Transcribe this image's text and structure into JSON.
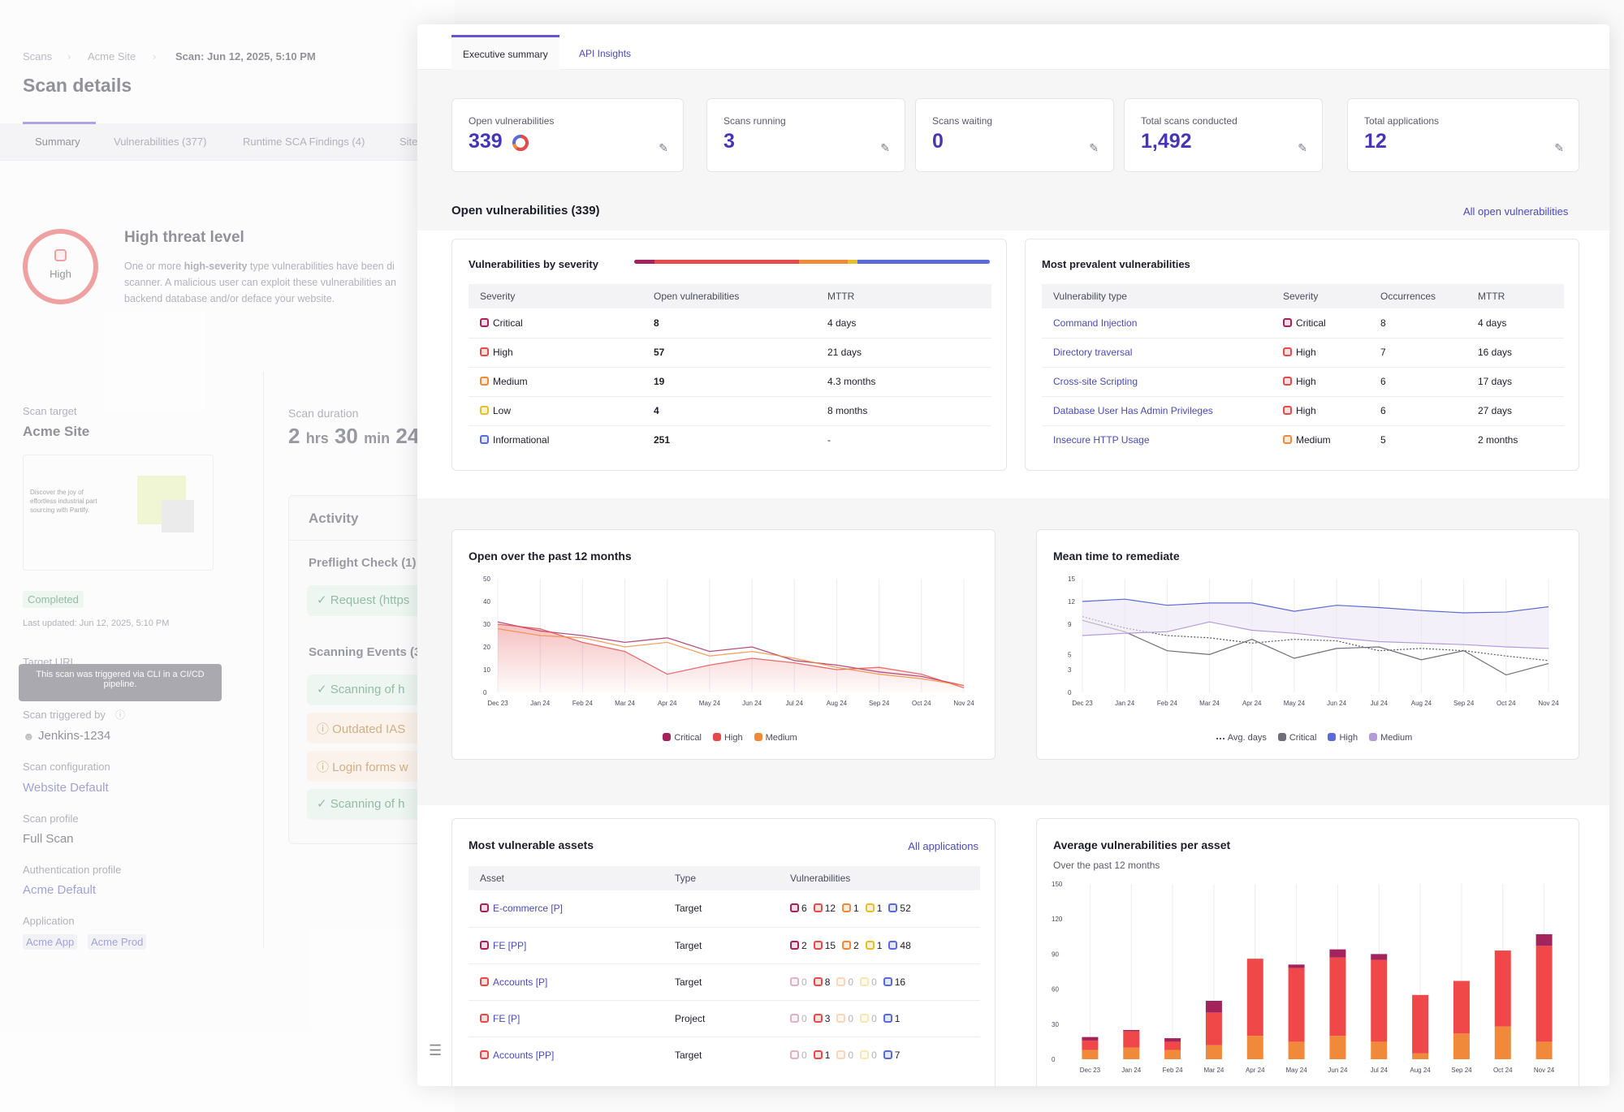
{
  "background": {
    "breadcrumb": [
      "Scans",
      "Acme Site",
      "Scan: Jun 12, 2025, 5:10 PM"
    ],
    "title": "Scan details",
    "tabs": [
      "Summary",
      "Vulnerabilities (377)",
      "Runtime SCA Findings (4)",
      "Site"
    ],
    "threat_level": "High threat level",
    "threat_ring_label": "High",
    "threat_desc_1a": "One or more ",
    "threat_desc_1b": "high-severity",
    "threat_desc_1c": " type vulnerabilities have been di",
    "threat_desc_2": "scanner. A malicious user can exploit these vulnerabilities an",
    "threat_desc_3": "backend database and/or deface your website.",
    "scan_target_label": "Scan target",
    "scan_target": "Acme Site",
    "thumb_text_1": "Discover the joy of",
    "thumb_text_2": "effortless industrial part",
    "thumb_text_3": "sourcing with Partify.",
    "status_badge": "Completed",
    "last_updated": "Last updated: Jun 12, 2025, 5:10 PM",
    "target_url_label": "Target URL",
    "tooltip": "This scan was triggered via CLI in a CI/CD pipeline.",
    "triggered_by_label": "Scan triggered by",
    "triggered_by": "Jenkins-1234",
    "config_label": "Scan configuration",
    "config": "Website Default",
    "profile_label": "Scan profile",
    "profile": "Full Scan",
    "auth_label": "Authentication profile",
    "auth": "Acme Default",
    "app_label": "Application",
    "apps": [
      "Acme App",
      "Acme Prod"
    ],
    "duration_label": "Scan duration",
    "duration_h": "2",
    "duration_h_unit": "hrs",
    "duration_m": "30",
    "duration_m_unit": "min",
    "duration_s": "24",
    "activity_title": "Activity",
    "preflight": "Preflight Check (1)",
    "preflight_item": "Request (https",
    "events": "Scanning Events (3",
    "event_items": [
      "Scanning of h",
      "Outdated IAS",
      "Login forms w",
      "Scanning of h"
    ]
  },
  "tabs": [
    "Executive summary",
    "API Insights"
  ],
  "kpis": [
    {
      "label": "Open vulnerabilities",
      "value": "339"
    },
    {
      "label": "Scans running",
      "value": "3"
    },
    {
      "label": "Scans waiting",
      "value": "0"
    },
    {
      "label": "Total scans conducted",
      "value": "1,492"
    },
    {
      "label": "Total applications",
      "value": "12"
    }
  ],
  "open_section": {
    "title": "Open vulnerabilities (339)",
    "link": "All open vulnerabilities"
  },
  "severity_card": {
    "title": "Vulnerabilities by severity",
    "headers": [
      "Severity",
      "Open vulnerabilities",
      "MTTR"
    ],
    "rows": [
      {
        "sev": "Critical",
        "count": "8",
        "mttr": "4 days"
      },
      {
        "sev": "High",
        "count": "57",
        "mttr": "21 days"
      },
      {
        "sev": "Medium",
        "count": "19",
        "mttr": "4.3 months"
      },
      {
        "sev": "Low",
        "count": "4",
        "mttr": "8 months"
      },
      {
        "sev": "Informational",
        "count": "251",
        "mttr": "-"
      }
    ],
    "colors": {
      "Critical": "#a3245c",
      "High": "#e54a4a",
      "Medium": "#f08a3a",
      "Low": "#e8be2a",
      "Informational": "#5a6ad6"
    }
  },
  "prevalent_card": {
    "title": "Most prevalent vulnerabilities",
    "headers": [
      "Vulnerability type",
      "Severity",
      "Occurrences",
      "MTTR"
    ],
    "rows": [
      {
        "type": "Command Injection",
        "sev": "Critical",
        "occ": "8",
        "mttr": "4 days"
      },
      {
        "type": "Directory traversal",
        "sev": "High",
        "occ": "7",
        "mttr": "16 days"
      },
      {
        "type": "Cross-site Scripting",
        "sev": "High",
        "occ": "6",
        "mttr": "17 days"
      },
      {
        "type": "Database User Has Admin Privileges",
        "sev": "High",
        "occ": "6",
        "mttr": "27 days"
      },
      {
        "type": "Insecure HTTP Usage",
        "sev": "Medium",
        "occ": "5",
        "mttr": "2 months"
      }
    ]
  },
  "chart_data": [
    {
      "type": "area",
      "title": "Open over the past 12 months",
      "categories": [
        "Dec 23",
        "Jan 24",
        "Feb 24",
        "Mar 24",
        "Apr 24",
        "May 24",
        "Jun 24",
        "Jul 24",
        "Aug 24",
        "Sep 24",
        "Oct 24",
        "Nov 24"
      ],
      "ylim": [
        0,
        50
      ],
      "yticks": [
        0,
        10,
        20,
        30,
        40,
        50
      ],
      "grid": true,
      "series": [
        {
          "name": "Critical",
          "color": "#a3245c",
          "values": [
            31,
            27,
            25,
            22,
            24,
            18,
            20,
            14,
            12,
            9,
            7,
            3
          ]
        },
        {
          "name": "High",
          "color": "#e54a4a",
          "values": [
            30,
            28,
            22,
            18,
            8,
            12,
            15,
            13,
            10,
            11,
            8,
            2
          ]
        },
        {
          "name": "Medium",
          "color": "#f08a3a",
          "values": [
            28,
            25,
            24,
            20,
            22,
            16,
            18,
            15,
            11,
            8,
            6,
            3
          ]
        }
      ],
      "legend": "bottom"
    },
    {
      "type": "line",
      "title": "Mean time to remediate",
      "categories": [
        "Dec 23",
        "Jan 24",
        "Feb 24",
        "Mar 24",
        "Apr 24",
        "May 24",
        "Jun 24",
        "Jul 24",
        "Aug 24",
        "Sep 24",
        "Oct 24",
        "Nov 24"
      ],
      "ylim": [
        0,
        15
      ],
      "yticks": [
        0,
        3,
        5,
        9,
        12,
        15
      ],
      "grid": true,
      "series": [
        {
          "name": "Avg. days",
          "color": "#555566",
          "dashed": true,
          "values": [
            10,
            8.5,
            7.5,
            7.2,
            6.5,
            7,
            6.8,
            5.5,
            5.8,
            5.5,
            4.8,
            4.2
          ]
        },
        {
          "name": "Critical",
          "color": "#6e6e78",
          "values": [
            9.5,
            8,
            5.5,
            5,
            7,
            4.5,
            5.8,
            6,
            4.3,
            5.5,
            2.3,
            3.8
          ]
        },
        {
          "name": "High",
          "color": "#5a6ad6",
          "values": [
            12,
            12.3,
            11.5,
            11.8,
            11.8,
            10.7,
            11.5,
            11.2,
            10.8,
            10.5,
            10.6,
            11.3
          ]
        },
        {
          "name": "Medium",
          "color": "#b59ad8",
          "values": [
            7.5,
            7.8,
            8,
            9.3,
            8.2,
            7.8,
            7.2,
            6.7,
            6.5,
            6.3,
            6,
            5.8
          ]
        }
      ],
      "legend": "bottom"
    },
    {
      "type": "bar",
      "title": "Average vulnerabilities per asset",
      "subtitle": "Over the past 12 months",
      "categories": [
        "Dec 23",
        "Jan 24",
        "Feb 24",
        "Mar 24",
        "Apr 24",
        "May 24",
        "Jun 24",
        "Jul 24",
        "Aug 24",
        "Sep 24",
        "Oct 24",
        "Nov 24"
      ],
      "ylim": [
        0,
        150
      ],
      "yticks": [
        0,
        30,
        60,
        90,
        120,
        150
      ],
      "grid": true,
      "stacked": true,
      "series": [
        {
          "name": "Medium",
          "color": "#f08a3a",
          "values": [
            8,
            10,
            8,
            12,
            20,
            15,
            20,
            15,
            5,
            22,
            28,
            15
          ]
        },
        {
          "name": "High",
          "color": "#f04848",
          "values": [
            8,
            14,
            7,
            28,
            66,
            63,
            67,
            70,
            50,
            45,
            65,
            82
          ]
        },
        {
          "name": "Critical",
          "color": "#a3245c",
          "values": [
            3,
            1,
            3,
            10,
            0,
            3,
            7,
            5,
            0,
            0,
            0,
            10
          ]
        }
      ]
    }
  ],
  "assets_card": {
    "title": "Most vulnerable assets",
    "link": "All applications",
    "headers": [
      "Asset",
      "Type",
      "Vulnerabilities"
    ],
    "rows": [
      {
        "asset": "E-commerce [P]",
        "sev": "Critical",
        "type": "Target",
        "c": "6",
        "h": "12",
        "m": "1",
        "l": "1",
        "i": "52"
      },
      {
        "asset": "FE [PP]",
        "sev": "Critical",
        "type": "Target",
        "c": "2",
        "h": "15",
        "m": "2",
        "l": "1",
        "i": "48"
      },
      {
        "asset": "Accounts [P]",
        "sev": "High",
        "type": "Target",
        "c": "0",
        "h": "8",
        "m": "0",
        "l": "0",
        "i": "16"
      },
      {
        "asset": "FE [P]",
        "sev": "High",
        "type": "Project",
        "c": "0",
        "h": "3",
        "m": "0",
        "l": "0",
        "i": "1"
      },
      {
        "asset": "Accounts [PP]",
        "sev": "High",
        "type": "Target",
        "c": "0",
        "h": "1",
        "m": "0",
        "l": "0",
        "i": "7"
      }
    ]
  }
}
